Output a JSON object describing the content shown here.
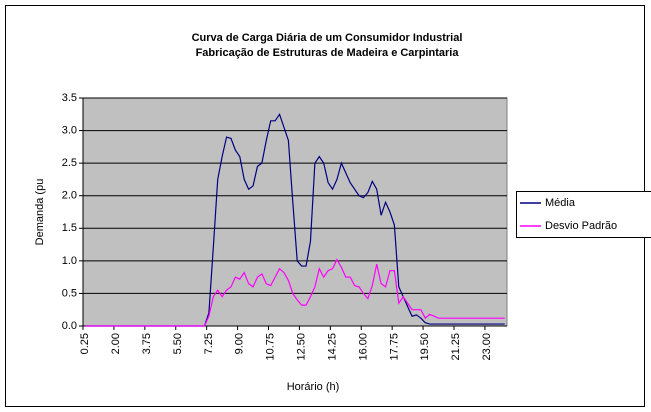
{
  "chart_data": {
    "type": "line",
    "title": "Curva de Carga Diária de um Consumidor Industrial",
    "subtitle": "Fabricação de Estruturas de Madeira e Carpintaria",
    "x_label": "Horário (h)",
    "y_label": "Demanda (pu",
    "categories": [
      "0.25",
      null,
      null,
      null,
      null,
      null,
      null,
      "2.00",
      null,
      null,
      null,
      null,
      null,
      null,
      "3.75",
      null,
      null,
      null,
      null,
      null,
      null,
      "5.50",
      null,
      null,
      null,
      null,
      null,
      null,
      "7.25",
      null,
      null,
      null,
      null,
      null,
      null,
      "9.00",
      null,
      null,
      null,
      null,
      null,
      null,
      "10.75",
      null,
      null,
      null,
      null,
      null,
      null,
      "12.50",
      null,
      null,
      null,
      null,
      null,
      null,
      "14.25",
      null,
      null,
      null,
      null,
      null,
      null,
      "16.00",
      null,
      null,
      null,
      null,
      null,
      null,
      "17.75",
      null,
      null,
      null,
      null,
      null,
      null,
      "19.50",
      null,
      null,
      null,
      null,
      null,
      null,
      "21.25",
      null,
      null,
      null,
      null,
      null,
      null,
      "23.00",
      null,
      null,
      null,
      null
    ],
    "series": [
      {
        "name": "Média",
        "color": "#000080",
        "values": [
          0,
          0,
          0,
          0,
          0,
          0,
          0,
          0,
          0,
          0,
          0,
          0,
          0,
          0,
          0,
          0,
          0,
          0,
          0,
          0,
          0,
          0,
          0,
          0,
          0,
          0,
          0,
          0,
          0.2,
          1.2,
          2.25,
          2.6,
          2.9,
          2.88,
          2.7,
          2.6,
          2.25,
          2.1,
          2.15,
          2.45,
          2.5,
          2.85,
          3.15,
          3.15,
          3.25,
          3.05,
          2.85,
          1.9,
          1.0,
          0.92,
          0.92,
          1.3,
          2.5,
          2.6,
          2.5,
          2.2,
          2.1,
          2.25,
          2.5,
          2.35,
          2.2,
          2.1,
          2.0,
          1.97,
          2.05,
          2.22,
          2.1,
          1.7,
          1.9,
          1.75,
          1.55,
          0.6,
          0.45,
          0.3,
          0.15,
          0.17,
          0.12,
          0.05,
          0.03,
          0.03,
          0.03,
          0.03,
          0.03,
          0.03,
          0.03,
          0.03,
          0.03,
          0.03,
          0.03,
          0.03,
          0.03,
          0.03,
          0.03,
          0.03,
          0.03,
          0.03
        ]
      },
      {
        "name": "Desvio Padrão",
        "color": "#ff00ff",
        "values": [
          0,
          0,
          0,
          0,
          0,
          0,
          0,
          0,
          0,
          0,
          0,
          0,
          0,
          0,
          0,
          0,
          0,
          0,
          0,
          0,
          0,
          0,
          0,
          0,
          0,
          0,
          0,
          0,
          0.15,
          0.45,
          0.55,
          0.45,
          0.55,
          0.6,
          0.75,
          0.72,
          0.82,
          0.65,
          0.6,
          0.75,
          0.8,
          0.65,
          0.62,
          0.75,
          0.88,
          0.82,
          0.7,
          0.5,
          0.4,
          0.32,
          0.32,
          0.45,
          0.6,
          0.88,
          0.75,
          0.85,
          0.88,
          1.02,
          0.9,
          0.75,
          0.75,
          0.62,
          0.6,
          0.5,
          0.42,
          0.62,
          0.95,
          0.65,
          0.6,
          0.85,
          0.85,
          0.35,
          0.45,
          0.35,
          0.25,
          0.25,
          0.25,
          0.12,
          0.18,
          0.15,
          0.12,
          0.12,
          0.12,
          0.12,
          0.12,
          0.12,
          0.12,
          0.12,
          0.12,
          0.12,
          0.12,
          0.12,
          0.12,
          0.12,
          0.12,
          0.12
        ]
      }
    ],
    "ylim": [
      0,
      3.5
    ],
    "yticks": [
      {
        "value": 0,
        "label": "0.0"
      },
      0.5,
      {
        "value": 1,
        "label": "1.0"
      },
      1.5,
      {
        "value": 2,
        "label": "2.0"
      },
      2.5,
      {
        "value": 3,
        "label": "3.0"
      },
      3.5
    ],
    "grid": true,
    "plot_background": "#c0c0c0",
    "legend": "right"
  }
}
